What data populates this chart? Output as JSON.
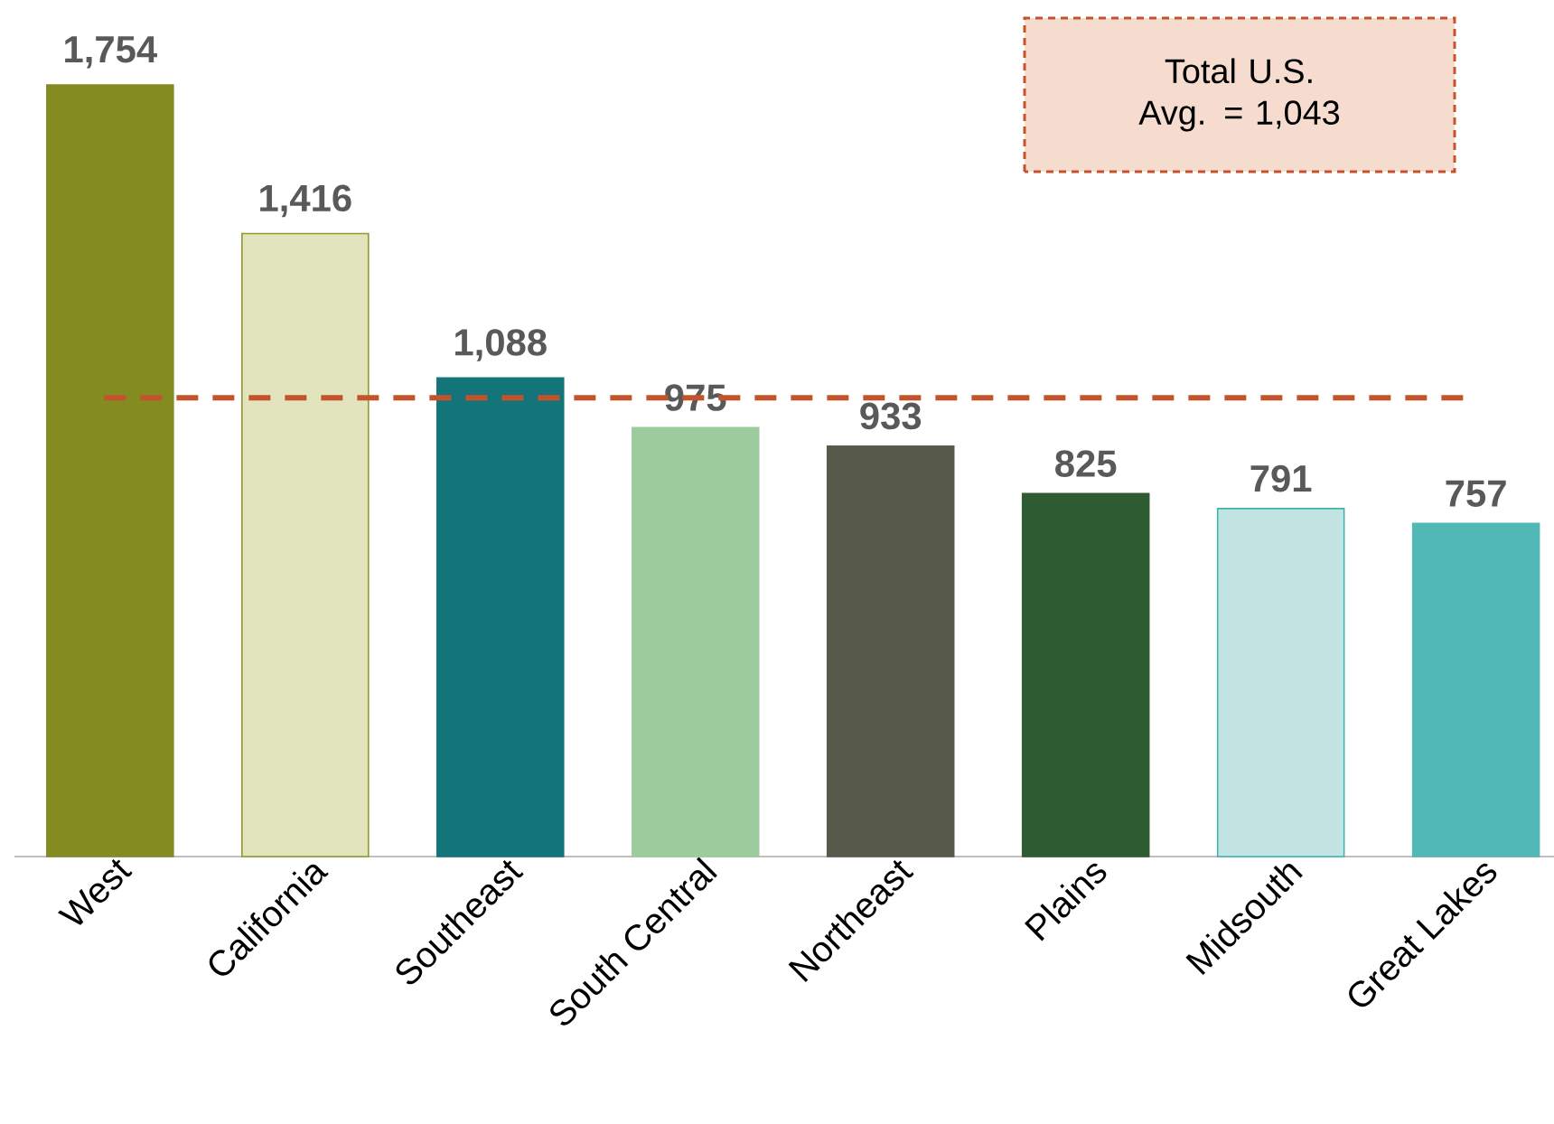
{
  "chart_data": {
    "type": "bar",
    "categories": [
      "West",
      "California",
      "Southeast",
      "South Central",
      "Northeast",
      "Plains",
      "Midsouth",
      "Great Lakes"
    ],
    "values": [
      1754,
      1416,
      1088,
      975,
      933,
      825,
      791,
      757
    ],
    "value_labels": [
      "1,754",
      "1,416",
      "1,088",
      "975",
      "933",
      "825",
      "791",
      "757"
    ],
    "colors": [
      "#848b20",
      "#e1e4bd",
      "#137579",
      "#9dcb9d",
      "#575a4a",
      "#2e5b31",
      "#c2e5e3",
      "#52b8b6"
    ],
    "ref_lines": [
      {
        "axis": "y",
        "value": 1043,
        "color": "#c4532b",
        "line_style": "dashed"
      }
    ],
    "annotations": [
      "Total U.S. Avg. = 1,043"
    ],
    "grid": false
  }
}
